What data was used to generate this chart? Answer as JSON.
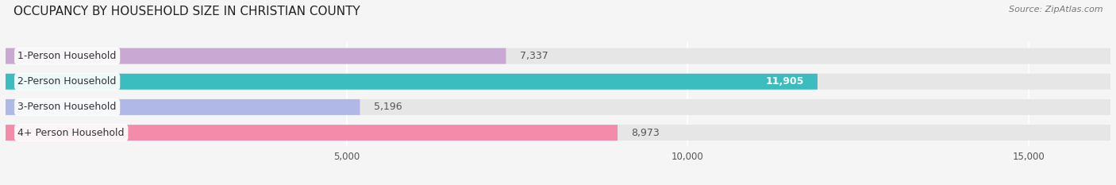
{
  "title": "OCCUPANCY BY HOUSEHOLD SIZE IN CHRISTIAN COUNTY",
  "source": "Source: ZipAtlas.com",
  "categories": [
    "1-Person Household",
    "2-Person Household",
    "3-Person Household",
    "4+ Person Household"
  ],
  "values": [
    7337,
    11905,
    5196,
    8973
  ],
  "bar_colors": [
    "#c9a8d4",
    "#3bbcbe",
    "#b0b8e8",
    "#f48bab"
  ],
  "bar_bg_color": "#e6e6e6",
  "value_labels": [
    "7,337",
    "11,905",
    "5,196",
    "8,973"
  ],
  "label_colors": [
    "#555555",
    "#ffffff",
    "#555555",
    "#555555"
  ],
  "label_inside": [
    false,
    true,
    false,
    false
  ],
  "xlim": [
    0,
    16200
  ],
  "xticks": [
    5000,
    10000,
    15000
  ],
  "xtick_labels": [
    "5,000",
    "10,000",
    "15,000"
  ],
  "background_color": "#f5f5f5",
  "title_fontsize": 11,
  "source_fontsize": 8,
  "bar_label_fontsize": 9,
  "category_fontsize": 9,
  "bar_height": 0.62
}
